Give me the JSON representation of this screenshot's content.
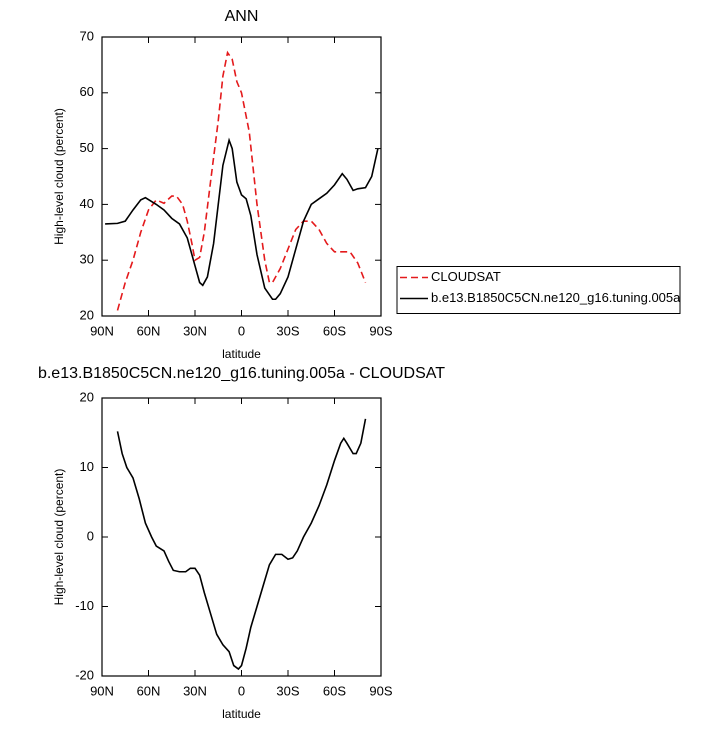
{
  "chart_data": [
    {
      "type": "line",
      "title": "ANN",
      "xlabel": "latitude",
      "ylabel": "High-level cloud (percent)",
      "xlim": [
        90,
        -90
      ],
      "xticks": [
        {
          "value": 90,
          "label": "90N"
        },
        {
          "value": 60,
          "label": "60N"
        },
        {
          "value": 30,
          "label": "30N"
        },
        0,
        {
          "value": -30,
          "label": "30S"
        },
        {
          "value": -60,
          "label": "60S"
        },
        {
          "value": -90,
          "label": "90S"
        }
      ],
      "ylim": [
        20,
        70
      ],
      "yticks": [
        20,
        30,
        40,
        50,
        60,
        70
      ],
      "legend": "right",
      "series": [
        {
          "name": "CLOUDSAT",
          "color": "#e41a1c",
          "line_style": "dashed",
          "x": [
            80,
            75,
            70,
            65,
            60,
            55,
            50,
            45,
            42,
            38,
            35,
            32,
            30,
            27,
            24,
            20,
            15,
            12,
            9,
            6,
            3,
            0,
            -5,
            -10,
            -15,
            -18,
            -20,
            -25,
            -30,
            -35,
            -40,
            -45,
            -50,
            -55,
            -60,
            -65,
            -70,
            -75,
            -80
          ],
          "values": [
            21,
            26,
            30,
            35,
            39,
            40.8,
            40.2,
            41.5,
            41.5,
            40,
            37,
            33,
            30,
            30.5,
            35,
            44,
            55,
            63,
            67.2,
            66,
            62,
            60,
            53,
            40,
            30,
            26,
            26,
            28.5,
            32,
            35.5,
            37,
            37,
            35.5,
            33,
            31.5,
            31.5,
            31.5,
            29.5,
            26
          ]
        },
        {
          "name": "b.e13.B1850C5CN.ne120_g16.tuning.005a",
          "color": "#000000",
          "line_style": "solid",
          "x": [
            88,
            80,
            75,
            70,
            65,
            62,
            55,
            50,
            45,
            40,
            35,
            30,
            27,
            25,
            22,
            18,
            15,
            12,
            8,
            6,
            3,
            0,
            -3,
            -6,
            -10,
            -15,
            -20,
            -22,
            -25,
            -30,
            -35,
            -40,
            -45,
            -50,
            -55,
            -60,
            -65,
            -68,
            -72,
            -75,
            -80,
            -84,
            -88
          ],
          "values": [
            36.5,
            36.6,
            37,
            39,
            40.8,
            41.2,
            40,
            39,
            37.5,
            36.5,
            34,
            29,
            26,
            25.5,
            27,
            33,
            40,
            47,
            51.5,
            50,
            44,
            41.7,
            41,
            38,
            31,
            25,
            23,
            23,
            24,
            27,
            32,
            37,
            40,
            41,
            42,
            43.5,
            45.5,
            44.5,
            42.5,
            42.8,
            43,
            45,
            50
          ]
        }
      ]
    },
    {
      "type": "line",
      "title": "b.e13.B1850C5CN.ne120_g16.tuning.005a - CLOUDSAT",
      "xlabel": "latitude",
      "ylabel": "High-level cloud (percent)",
      "xlim": [
        90,
        -90
      ],
      "xticks": [
        {
          "value": 90,
          "label": "90N"
        },
        {
          "value": 60,
          "label": "60N"
        },
        {
          "value": 30,
          "label": "30N"
        },
        0,
        {
          "value": -30,
          "label": "30S"
        },
        {
          "value": -60,
          "label": "60S"
        },
        {
          "value": -90,
          "label": "90S"
        }
      ],
      "ylim": [
        -20,
        20
      ],
      "yticks": [
        -20,
        -10,
        0,
        10,
        20
      ],
      "series": [
        {
          "color": "#000000",
          "line_style": "solid",
          "x": [
            80,
            77,
            74,
            70,
            66,
            62,
            58,
            55,
            50,
            47,
            44,
            40,
            36,
            33,
            30,
            27,
            24,
            20,
            16,
            12,
            8,
            5,
            2,
            0,
            -3,
            -6,
            -10,
            -14,
            -18,
            -22,
            -26,
            -30,
            -33,
            -36,
            -40,
            -45,
            -50,
            -55,
            -60,
            -64,
            -66,
            -68,
            -72,
            -74,
            -77,
            -80
          ],
          "values": [
            15.2,
            12,
            10,
            8.5,
            5.5,
            2,
            0,
            -1.3,
            -2,
            -3.5,
            -4.8,
            -5,
            -5,
            -4.5,
            -4.5,
            -5.5,
            -8,
            -11,
            -14,
            -15.5,
            -16.5,
            -18.5,
            -19,
            -18.5,
            -16,
            -13,
            -10,
            -7,
            -4,
            -2.5,
            -2.5,
            -3.2,
            -3,
            -2,
            0,
            2,
            4.5,
            7.5,
            11,
            13.5,
            14.2,
            13.5,
            12,
            12,
            13.5,
            17
          ]
        }
      ]
    }
  ]
}
